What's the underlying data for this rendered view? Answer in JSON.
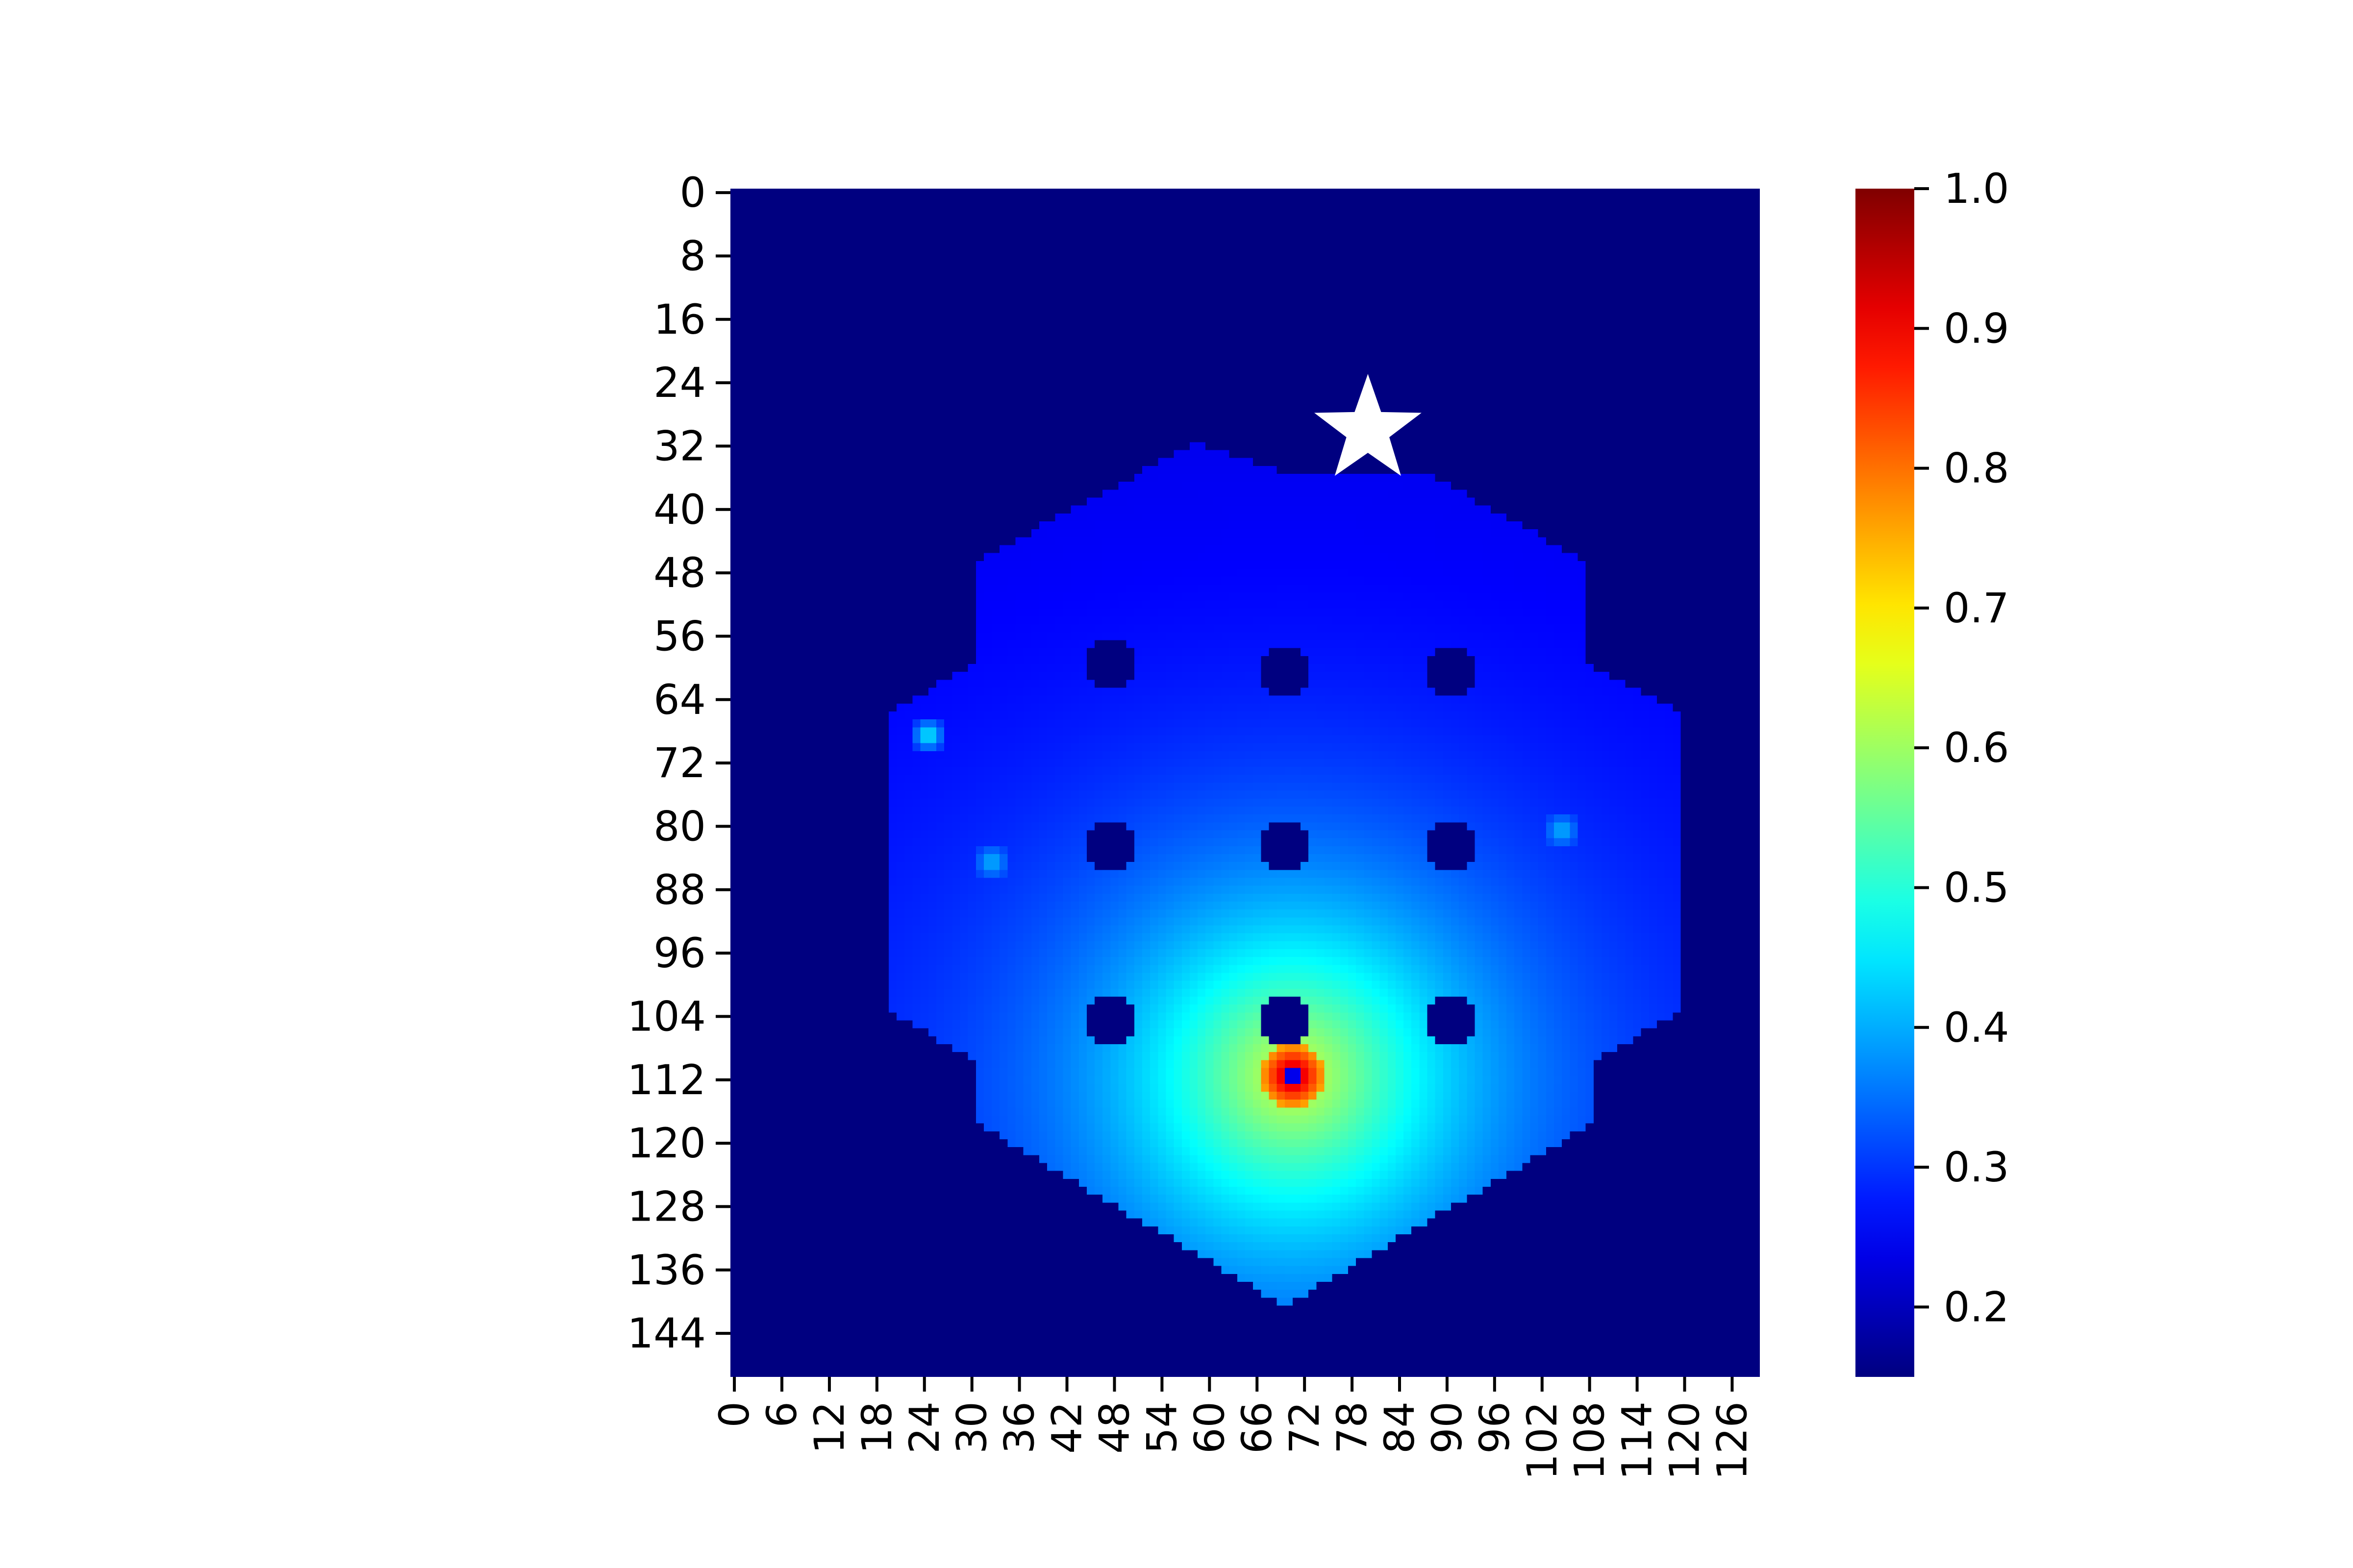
{
  "chart_data": {
    "type": "heatmap",
    "title": "",
    "xlabel": "",
    "ylabel": "",
    "colormap": "jet",
    "grid": false,
    "x_ticks": [
      0,
      6,
      12,
      18,
      24,
      30,
      36,
      42,
      48,
      54,
      60,
      66,
      72,
      78,
      84,
      90,
      96,
      102,
      108,
      114,
      120,
      126
    ],
    "y_ticks": [
      0,
      8,
      16,
      24,
      32,
      40,
      48,
      56,
      64,
      72,
      80,
      88,
      96,
      104,
      112,
      120,
      128,
      136,
      144
    ],
    "x_ticks_labels": [
      "0",
      "6",
      "12",
      "18",
      "24",
      "30",
      "36",
      "42",
      "48",
      "54",
      "60",
      "66",
      "72",
      "78",
      "84",
      "90",
      "96",
      "102",
      "108",
      "114",
      "120",
      "126"
    ],
    "y_ticks_labels": [
      "0",
      "8",
      "16",
      "24",
      "32",
      "40",
      "48",
      "56",
      "64",
      "72",
      "80",
      "88",
      "96",
      "104",
      "112",
      "120",
      "128",
      "136",
      "144"
    ],
    "columns": 130,
    "rows": 150,
    "colorbar": {
      "range": [
        0.15,
        1.0
      ],
      "ticks": [
        0.2,
        0.3,
        0.4,
        0.5,
        0.6,
        0.7,
        0.8,
        0.9,
        1.0
      ],
      "tick_labels": [
        "0.2",
        "0.3",
        "0.4",
        "0.5",
        "0.6",
        "0.7",
        "0.8",
        "0.9",
        "1.0"
      ]
    },
    "background_value": 0.15,
    "hexagon_region": {
      "vertices": [
        [
          59,
          32
        ],
        [
          70,
          36
        ],
        [
          88,
          36
        ],
        [
          108,
          47
        ],
        [
          108,
          60
        ],
        [
          120,
          66
        ],
        [
          120,
          104
        ],
        [
          109,
          110
        ],
        [
          109,
          118
        ],
        [
          70,
          141
        ],
        [
          31,
          118
        ],
        [
          31,
          110
        ],
        [
          20,
          104
        ],
        [
          20,
          66
        ],
        [
          31,
          60
        ],
        [
          31,
          47
        ]
      ],
      "base_value": 0.27
    },
    "hot_spot": {
      "x": 71,
      "y": 112,
      "peak_value": 1.0
    },
    "holes": [
      {
        "x": 48,
        "y": 60
      },
      {
        "x": 70,
        "y": 61
      },
      {
        "x": 91,
        "y": 61
      },
      {
        "x": 48,
        "y": 83
      },
      {
        "x": 70,
        "y": 83
      },
      {
        "x": 91,
        "y": 83
      },
      {
        "x": 48,
        "y": 105
      },
      {
        "x": 70,
        "y": 105
      },
      {
        "x": 91,
        "y": 105
      }
    ],
    "point_sources": [
      {
        "x": 25,
        "y": 69,
        "value": 0.45
      },
      {
        "x": 33,
        "y": 85,
        "value": 0.4
      },
      {
        "x": 105,
        "y": 81,
        "value": 0.4
      },
      {
        "x": 58,
        "y": 89,
        "value": 0.32
      },
      {
        "x": 53,
        "y": 109,
        "value": 0.42
      },
      {
        "x": 77,
        "y": 124,
        "value": 0.45
      }
    ],
    "marker": {
      "shape": "star",
      "color": "#ffffff",
      "x": 80,
      "y": 30
    }
  }
}
